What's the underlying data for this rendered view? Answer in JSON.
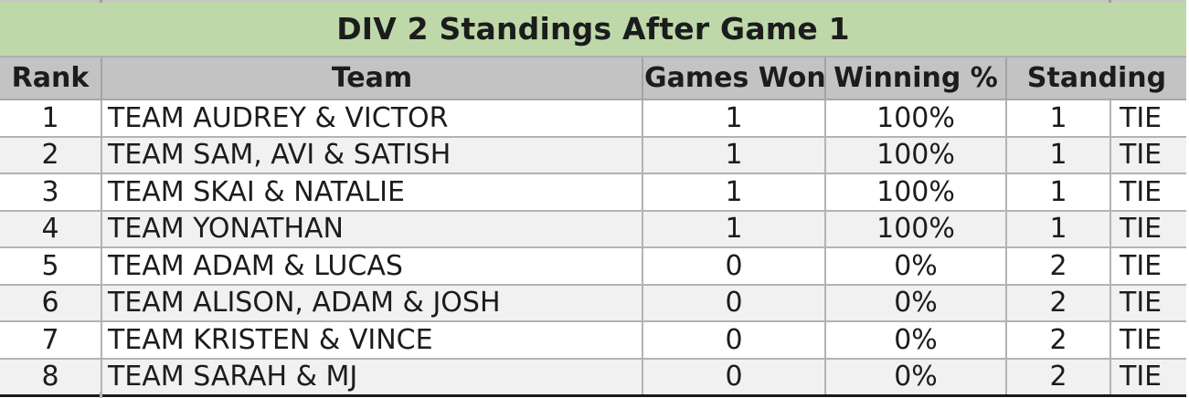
{
  "title": "DIV 2 Standings After Game 1",
  "columns": {
    "rank": "Rank",
    "team": "Team",
    "games_won": "Games Won",
    "winning_pct": "Winning %",
    "standing": "Standing"
  },
  "rows": [
    {
      "rank": "1",
      "team": "TEAM AUDREY & VICTOR",
      "games_won": "1",
      "winning_pct": "100%",
      "standing": "1",
      "tie": "TIE"
    },
    {
      "rank": "2",
      "team": "TEAM SAM, AVI & SATISH",
      "games_won": "1",
      "winning_pct": "100%",
      "standing": "1",
      "tie": "TIE"
    },
    {
      "rank": "3",
      "team": "TEAM SKAI & NATALIE",
      "games_won": "1",
      "winning_pct": "100%",
      "standing": "1",
      "tie": "TIE"
    },
    {
      "rank": "4",
      "team": "TEAM YONATHAN",
      "games_won": "1",
      "winning_pct": "100%",
      "standing": "1",
      "tie": "TIE"
    },
    {
      "rank": "5",
      "team": "TEAM ADAM & LUCAS",
      "games_won": "0",
      "winning_pct": "0%",
      "standing": "2",
      "tie": "TIE"
    },
    {
      "rank": "6",
      "team": "TEAM ALISON, ADAM & JOSH",
      "games_won": "0",
      "winning_pct": "0%",
      "standing": "2",
      "tie": "TIE"
    },
    {
      "rank": "7",
      "team": "TEAM KRISTEN & VINCE",
      "games_won": "0",
      "winning_pct": "0%",
      "standing": "2",
      "tie": "TIE"
    },
    {
      "rank": "8",
      "team": "TEAM SARAH & MJ",
      "games_won": "0",
      "winning_pct": "0%",
      "standing": "2",
      "tie": "TIE"
    }
  ],
  "colors": {
    "title_bg": "#bed8aa",
    "header_bg": "#c3c3c3",
    "stripe_bg": "#f1f1f1",
    "gridline": "#b3b3b3",
    "bottom_border": "#1a1a1a",
    "text": "#1c1c1c"
  }
}
